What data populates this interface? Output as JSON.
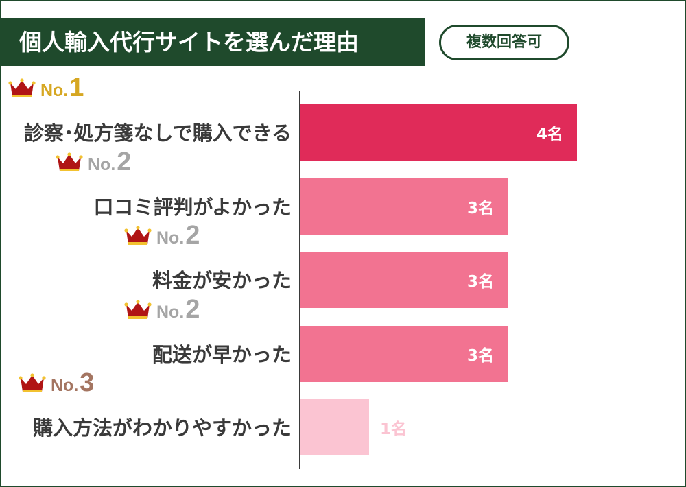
{
  "header": {
    "title": "個人輸入代行サイトを選んだ理由",
    "badge": "複数回答可"
  },
  "colors": {
    "frame": "#1f4a2c",
    "bar_rank1": "#e02b59",
    "bar_rank2": "#f27391",
    "bar_rank3": "#fbc4d2",
    "rank1_text": "#d6a722",
    "rank2_text": "#a5a5a5",
    "rank3_text": "#a47561",
    "crown": "#b01515",
    "crown_jewel": "#f2c230"
  },
  "chart_data": {
    "type": "bar",
    "orientation": "horizontal",
    "title": "個人輸入代行サイトを選んだ理由",
    "categories": [
      "診察･処方箋なしで購入できる",
      "口コミ評判がよかった",
      "料金が安かった",
      "配送が早かった",
      "購入方法がわかりやすかった"
    ],
    "values": [
      4,
      3,
      3,
      3,
      1
    ],
    "value_labels": [
      "4名",
      "3名",
      "3名",
      "3名",
      "1名"
    ],
    "ranks": [
      {
        "prefix": "No.",
        "number": "1"
      },
      {
        "prefix": "No.",
        "number": "2"
      },
      {
        "prefix": "No.",
        "number": "2"
      },
      {
        "prefix": "No.",
        "number": "2"
      },
      {
        "prefix": "No.",
        "number": "3"
      }
    ],
    "xlim": [
      0,
      4
    ],
    "grid": false,
    "legend": "none"
  }
}
